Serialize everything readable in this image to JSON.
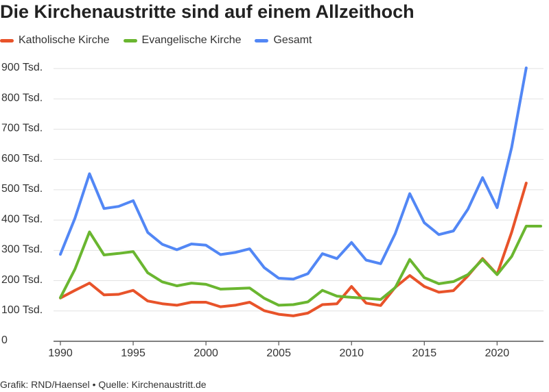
{
  "chart_data": {
    "type": "line",
    "title": "Die Kirchenaustritte sind auf einem Allzeithoch",
    "xlabel": "",
    "ylabel": "",
    "ylim": [
      0,
      900
    ],
    "xlim": [
      1990,
      2023
    ],
    "grid": true,
    "legend_position": "top-left",
    "y_ticks": [
      {
        "value": 0,
        "label": "0"
      },
      {
        "value": 100,
        "label": "100 Tsd."
      },
      {
        "value": 200,
        "label": "200 Tsd."
      },
      {
        "value": 300,
        "label": "300 Tsd."
      },
      {
        "value": 400,
        "label": "400 Tsd."
      },
      {
        "value": 500,
        "label": "500 Tsd."
      },
      {
        "value": 600,
        "label": "600 Tsd."
      },
      {
        "value": 700,
        "label": "700 Tsd."
      },
      {
        "value": 800,
        "label": "800 Tsd."
      },
      {
        "value": 900,
        "label": "900 Tsd."
      }
    ],
    "x_ticks": [
      {
        "value": 1990,
        "label": "1990"
      },
      {
        "value": 1995,
        "label": "1995"
      },
      {
        "value": 2000,
        "label": "2000"
      },
      {
        "value": 2005,
        "label": "2005"
      },
      {
        "value": 2010,
        "label": "2010"
      },
      {
        "value": 2015,
        "label": "2015"
      },
      {
        "value": 2020,
        "label": "2020"
      }
    ],
    "series": [
      {
        "name": "Katholische Kirche",
        "color": "#e8532a",
        "x": [
          1990,
          1991,
          1992,
          1993,
          1994,
          1995,
          1996,
          1997,
          1998,
          1999,
          2000,
          2001,
          2002,
          2003,
          2004,
          2005,
          2006,
          2007,
          2008,
          2009,
          2010,
          2011,
          2012,
          2013,
          2014,
          2015,
          2016,
          2017,
          2018,
          2019,
          2020,
          2021,
          2022
        ],
        "values": [
          143,
          168,
          192,
          153,
          155,
          168,
          133,
          124,
          119,
          129,
          129,
          114,
          119,
          129,
          101,
          89,
          84,
          93,
          121,
          124,
          181,
          126,
          118,
          178,
          217,
          181,
          162,
          167,
          216,
          273,
          221,
          360,
          522
        ]
      },
      {
        "name": "Evangelische Kirche",
        "color": "#6ab630",
        "x": [
          1990,
          1991,
          1992,
          1993,
          1994,
          1995,
          1996,
          1997,
          1998,
          1999,
          2000,
          2001,
          2002,
          2003,
          2004,
          2005,
          2006,
          2007,
          2008,
          2009,
          2010,
          2011,
          2012,
          2013,
          2014,
          2015,
          2016,
          2017,
          2018,
          2019,
          2020,
          2021,
          2022,
          2023
        ],
        "values": [
          144,
          238,
          361,
          285,
          290,
          296,
          226,
          196,
          183,
          192,
          188,
          172,
          174,
          176,
          142,
          119,
          121,
          130,
          168,
          149,
          145,
          142,
          138,
          177,
          270,
          210,
          190,
          197,
          220,
          270,
          220,
          280,
          380,
          380
        ]
      },
      {
        "name": "Gesamt",
        "color": "#5287f5",
        "x": [
          1990,
          1991,
          1992,
          1993,
          1994,
          1995,
          1996,
          1997,
          1998,
          1999,
          2000,
          2001,
          2002,
          2003,
          2004,
          2005,
          2006,
          2007,
          2008,
          2009,
          2010,
          2011,
          2012,
          2013,
          2014,
          2015,
          2016,
          2017,
          2018,
          2019,
          2020,
          2021,
          2022
        ],
        "values": [
          287,
          406,
          553,
          438,
          445,
          464,
          359,
          320,
          302,
          321,
          317,
          286,
          293,
          305,
          243,
          208,
          205,
          223,
          289,
          273,
          326,
          268,
          256,
          355,
          487,
          391,
          352,
          364,
          436,
          540,
          441,
          640,
          902
        ]
      }
    ]
  },
  "footer": "Grafik: RND/Haensel • Quelle: Kirchenaustritt.de"
}
